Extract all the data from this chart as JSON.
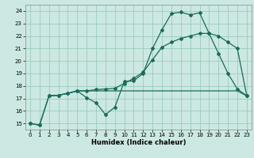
{
  "xlabel": "Humidex (Indice chaleur)",
  "bg_color": "#cce8e2",
  "grid_color": "#99ccbb",
  "line_color": "#1a6b5a",
  "xlim": [
    -0.5,
    23.5
  ],
  "ylim": [
    14.5,
    24.5
  ],
  "xticks": [
    0,
    1,
    2,
    3,
    4,
    5,
    6,
    7,
    8,
    9,
    10,
    11,
    12,
    13,
    14,
    15,
    16,
    17,
    18,
    19,
    20,
    21,
    22,
    23
  ],
  "yticks": [
    15,
    16,
    17,
    18,
    19,
    20,
    21,
    22,
    23,
    24
  ],
  "line1_x": [
    0,
    1,
    2,
    3,
    4,
    5,
    6,
    7,
    8,
    9,
    10,
    11,
    12,
    13,
    14,
    15,
    16,
    17,
    18,
    19,
    20,
    21,
    22,
    23
  ],
  "line1_y": [
    15.0,
    14.85,
    17.2,
    17.25,
    17.4,
    17.6,
    17.05,
    16.65,
    15.7,
    16.3,
    18.35,
    18.4,
    19.0,
    21.0,
    22.5,
    23.8,
    23.9,
    23.7,
    23.85,
    22.2,
    20.6,
    19.0,
    17.75,
    17.2
  ],
  "line2_x": [
    2,
    3,
    4,
    5,
    6,
    7,
    8,
    9,
    10,
    11,
    12,
    13,
    14,
    15,
    16,
    17,
    18,
    19,
    20,
    21,
    22,
    23
  ],
  "line2_y": [
    17.2,
    17.25,
    17.4,
    17.6,
    17.6,
    17.6,
    17.6,
    17.6,
    17.6,
    17.6,
    17.6,
    17.6,
    17.6,
    17.6,
    17.6,
    17.6,
    17.6,
    17.6,
    17.6,
    17.6,
    17.6,
    17.2
  ],
  "line3_x": [
    0,
    1,
    2,
    3,
    4,
    5,
    6,
    7,
    8,
    9,
    10,
    11,
    12,
    13,
    14,
    15,
    16,
    17,
    18,
    19,
    20,
    21,
    22,
    23
  ],
  "line3_y": [
    15.0,
    14.85,
    17.2,
    17.25,
    17.4,
    17.6,
    17.6,
    17.7,
    17.75,
    17.8,
    18.2,
    18.6,
    19.1,
    20.1,
    21.1,
    21.5,
    21.8,
    22.0,
    22.2,
    22.2,
    22.0,
    21.5,
    21.0,
    17.2
  ]
}
